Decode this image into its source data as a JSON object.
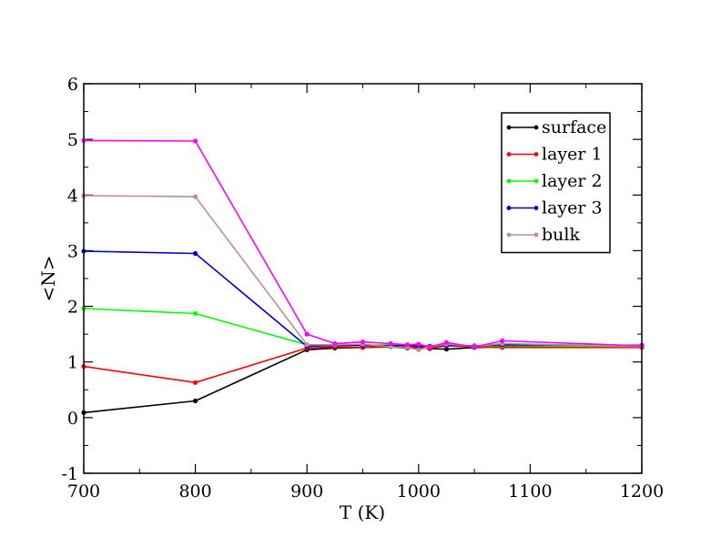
{
  "chart_data": {
    "type": "line",
    "title": "",
    "xlabel": "T (K)",
    "ylabel": "<N>",
    "xlim": [
      700,
      1200
    ],
    "ylim": [
      -1,
      6
    ],
    "xticks": [
      700,
      800,
      900,
      1000,
      1100,
      1200
    ],
    "yticks": [
      -1,
      0,
      1,
      2,
      3,
      4,
      5,
      6
    ],
    "x_minor_step": 50,
    "y_minor_step": 0.5,
    "grid": false,
    "legend_position": "top-right",
    "series": [
      {
        "name": "surface",
        "color": "#000000",
        "x": [
          700,
          800,
          900,
          925,
          950,
          975,
          990,
          1000,
          1010,
          1025,
          1050,
          1075,
          1200
        ],
        "y": [
          0.09,
          0.3,
          1.22,
          1.25,
          1.26,
          1.27,
          1.25,
          1.26,
          1.24,
          1.23,
          1.26,
          1.27,
          1.27
        ]
      },
      {
        "name": "layer 1",
        "color": "#ff0000",
        "x": [
          700,
          800,
          900,
          925,
          950,
          975,
          990,
          1000,
          1010,
          1025,
          1050,
          1075,
          1200
        ],
        "y": [
          0.92,
          0.63,
          1.25,
          1.27,
          1.26,
          1.28,
          1.27,
          1.27,
          1.25,
          1.29,
          1.27,
          1.26,
          1.26
        ]
      },
      {
        "name": "layer 2",
        "color": "#00ff00",
        "x": [
          700,
          800,
          900,
          925,
          950,
          975,
          990,
          1000,
          1010,
          1025,
          1050,
          1075,
          1200
        ],
        "y": [
          1.96,
          1.87,
          1.31,
          1.3,
          1.3,
          1.31,
          1.3,
          1.3,
          1.29,
          1.3,
          1.29,
          1.29,
          1.28
        ]
      },
      {
        "name": "layer 3",
        "color": "#0000cd",
        "x": [
          700,
          800,
          900,
          925,
          950,
          975,
          990,
          1000,
          1010,
          1025,
          1050,
          1075,
          1200
        ],
        "y": [
          2.99,
          2.95,
          1.28,
          1.3,
          1.3,
          1.29,
          1.3,
          1.29,
          1.28,
          1.3,
          1.29,
          1.31,
          1.3
        ]
      },
      {
        "name": "bulk",
        "color": "#bc8f8f",
        "x": [
          700,
          800,
          900,
          925,
          950,
          975,
          990,
          1000,
          1010,
          1025,
          1050,
          1075,
          1200
        ],
        "y": [
          3.99,
          3.97,
          1.31,
          1.31,
          1.32,
          1.27,
          1.26,
          1.22,
          1.27,
          1.32,
          1.28,
          1.33,
          1.28
        ]
      },
      {
        "name": "",
        "color": "#ff00ff",
        "x": [
          700,
          800,
          900,
          925,
          950,
          975,
          990,
          1000,
          1010,
          1025,
          1050,
          1075,
          1200
        ],
        "y": [
          4.98,
          4.97,
          1.5,
          1.33,
          1.36,
          1.33,
          1.31,
          1.32,
          1.27,
          1.35,
          1.27,
          1.38,
          1.29
        ]
      }
    ]
  }
}
